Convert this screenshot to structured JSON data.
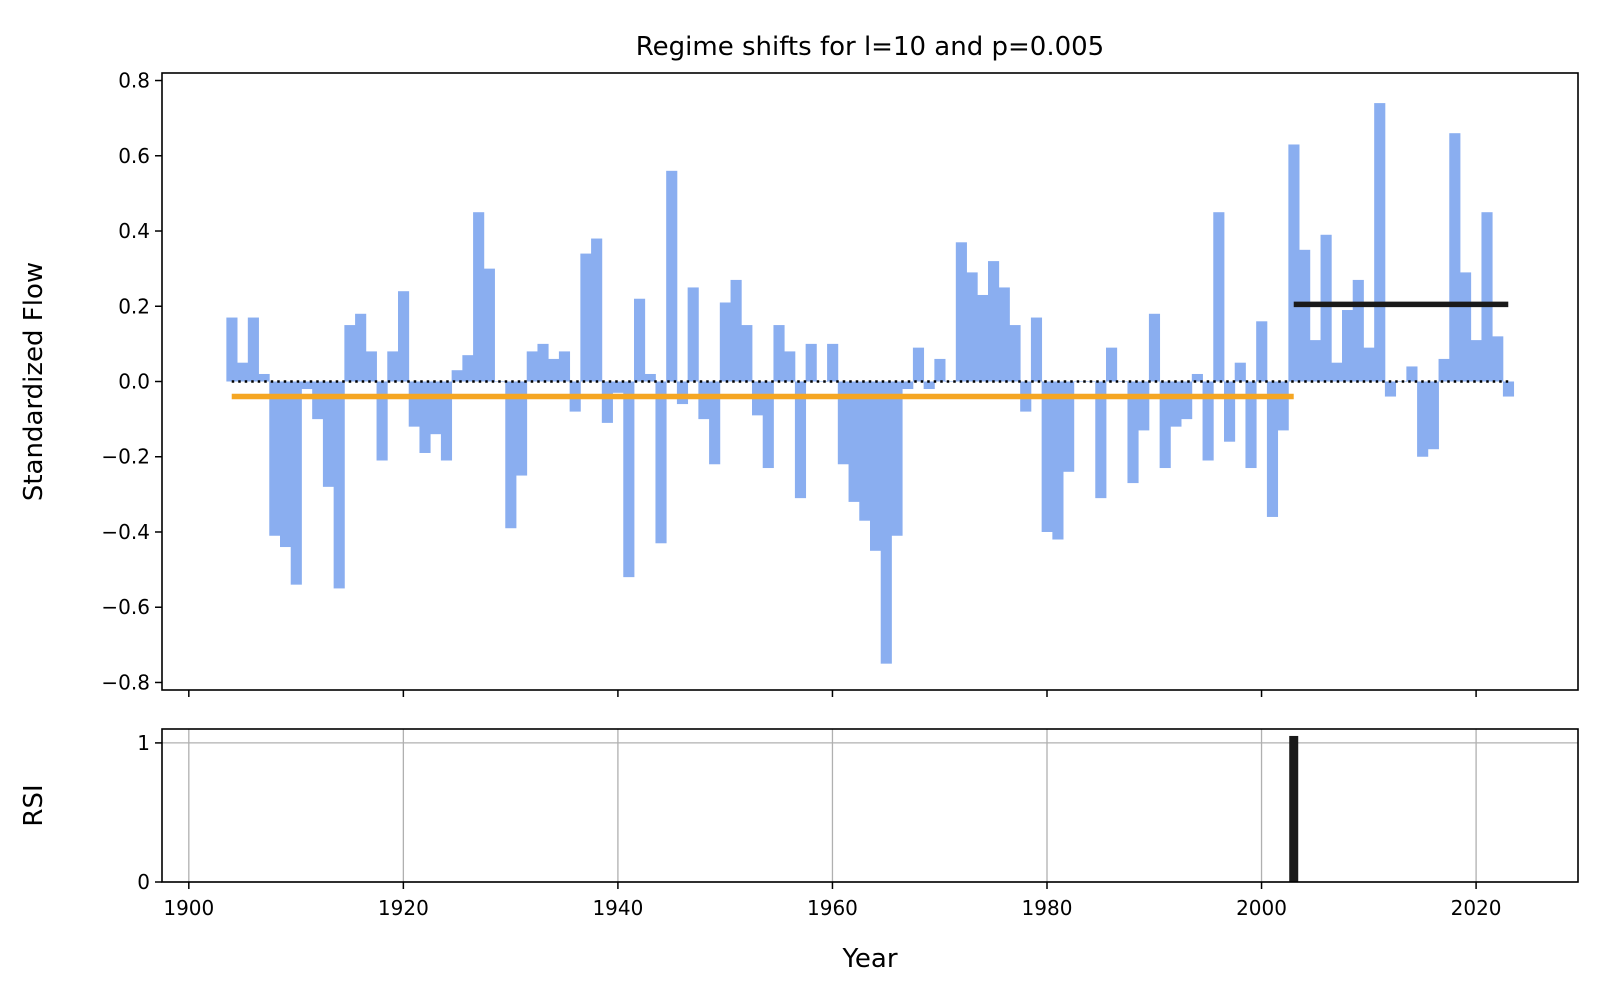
{
  "chart_data": [
    {
      "type": "bar",
      "title": "Regime shifts for l=10 and  p=0.005",
      "xlabel": "",
      "ylabel": "Standardized Flow",
      "xlim": [
        1897.5,
        2029.5
      ],
      "ylim": [
        -0.82,
        0.82
      ],
      "yticks": [
        "−0.8",
        "−0.6",
        "−0.4",
        "−0.2",
        "0.0",
        "0.2",
        "0.4",
        "0.6",
        "0.8"
      ],
      "ytick_values": [
        -0.8,
        -0.6,
        -0.4,
        -0.2,
        0.0,
        0.2,
        0.4,
        0.6,
        0.8
      ],
      "xtick_values": [
        1900,
        1920,
        1940,
        1960,
        1980,
        2000,
        2020
      ],
      "grid": false,
      "bar_color": "#8aaef0",
      "years": [
        1904,
        1905,
        1906,
        1907,
        1908,
        1909,
        1910,
        1911,
        1912,
        1913,
        1914,
        1915,
        1916,
        1917,
        1918,
        1919,
        1920,
        1921,
        1922,
        1923,
        1924,
        1925,
        1926,
        1927,
        1928,
        1929,
        1930,
        1931,
        1932,
        1933,
        1934,
        1935,
        1936,
        1937,
        1938,
        1939,
        1940,
        1941,
        1942,
        1943,
        1944,
        1945,
        1946,
        1947,
        1948,
        1949,
        1950,
        1951,
        1952,
        1953,
        1954,
        1955,
        1956,
        1957,
        1958,
        1959,
        1960,
        1961,
        1962,
        1963,
        1964,
        1965,
        1966,
        1967,
        1968,
        1969,
        1970,
        1971,
        1972,
        1973,
        1974,
        1975,
        1976,
        1977,
        1978,
        1979,
        1980,
        1981,
        1982,
        1983,
        1984,
        1985,
        1986,
        1987,
        1988,
        1989,
        1990,
        1991,
        1992,
        1993,
        1994,
        1995,
        1996,
        1997,
        1998,
        1999,
        2000,
        2001,
        2002,
        2003,
        2004,
        2005,
        2006,
        2007,
        2008,
        2009,
        2010,
        2011,
        2012,
        2013,
        2014,
        2015,
        2016,
        2017,
        2018,
        2019,
        2020,
        2021,
        2022,
        2023
      ],
      "values": [
        0.17,
        0.05,
        0.17,
        0.02,
        -0.41,
        -0.44,
        -0.54,
        -0.02,
        -0.1,
        -0.28,
        -0.55,
        0.15,
        0.18,
        0.08,
        -0.21,
        0.08,
        0.24,
        -0.12,
        -0.19,
        -0.14,
        -0.21,
        0.03,
        0.07,
        0.45,
        0.3,
        0.0,
        -0.39,
        -0.25,
        0.08,
        0.1,
        0.06,
        0.08,
        -0.08,
        0.34,
        0.38,
        -0.11,
        -0.03,
        -0.52,
        0.22,
        0.02,
        -0.43,
        0.56,
        -0.06,
        0.25,
        -0.1,
        -0.22,
        0.21,
        0.27,
        0.15,
        -0.09,
        -0.23,
        0.15,
        0.08,
        -0.31,
        0.1,
        0.0,
        0.1,
        -0.22,
        -0.32,
        -0.37,
        -0.45,
        -0.75,
        -0.41,
        -0.02,
        0.09,
        -0.02,
        0.06,
        0.0,
        0.37,
        0.29,
        0.23,
        0.32,
        0.25,
        0.15,
        -0.08,
        0.17,
        -0.4,
        -0.42,
        -0.24,
        0.0,
        0.0,
        -0.31,
        0.09,
        0.0,
        -0.27,
        -0.13,
        0.18,
        -0.23,
        -0.12,
        -0.1,
        0.02,
        -0.21,
        0.45,
        -0.16,
        0.05,
        -0.23,
        0.16,
        -0.36,
        -0.13,
        0.63,
        0.35,
        0.11,
        0.39,
        0.05,
        0.19,
        0.27,
        0.09,
        0.74,
        -0.04,
        0.0,
        0.04,
        -0.2,
        -0.18,
        0.06,
        0.66,
        0.29,
        0.11,
        0.45,
        0.12,
        -0.04
      ],
      "regime_lines": [
        {
          "x_start": 1904,
          "x_end": 2003,
          "y": -0.04,
          "color": "#f5a623"
        },
        {
          "x_start": 2003,
          "x_end": 2023,
          "y": 0.205,
          "color": "#1a1a1a"
        }
      ],
      "zero_line": {
        "x_start": 1904,
        "x_end": 2023,
        "y": 0.0,
        "style": "dotted",
        "color": "#000000"
      }
    },
    {
      "type": "bar",
      "title": "",
      "xlabel": "Year",
      "ylabel": "RSI",
      "xlim": [
        1897.5,
        2029.5
      ],
      "ylim": [
        0,
        1.1
      ],
      "yticks": [
        "0",
        "1"
      ],
      "ytick_values": [
        0,
        1
      ],
      "xticks": [
        "1900",
        "1920",
        "1940",
        "1960",
        "1980",
        "2000",
        "2020"
      ],
      "xtick_values": [
        1900,
        1920,
        1940,
        1960,
        1980,
        2000,
        2020
      ],
      "grid": true,
      "bar_color": "#1a1a1a",
      "x": [
        2003
      ],
      "values": [
        1.05
      ]
    }
  ]
}
